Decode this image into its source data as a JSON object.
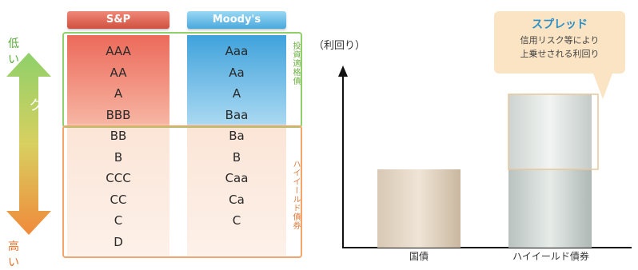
{
  "ratings": {
    "sp": {
      "header": "S&P",
      "items": [
        "AAA",
        "AA",
        "A",
        "BBB",
        "BB",
        "B",
        "CCC",
        "CC",
        "C",
        "D"
      ]
    },
    "moodys": {
      "header": "Moody's",
      "items": [
        "Aaa",
        "Aa",
        "A",
        "Baa",
        "Ba",
        "B",
        "Caa",
        "Ca",
        "C"
      ]
    },
    "investment_grade_label": "投資適格債",
    "high_yield_label": "ハイイールド債券"
  },
  "risk_arrow": {
    "low": "低い",
    "high": "高い",
    "label": "信用リスク"
  },
  "chart": {
    "y_label": "（利回り）",
    "x_labels": [
      "国債",
      "ハイイールド債券"
    ],
    "callout": {
      "title": "スプレッド",
      "line1": "信用リスク等により",
      "line2": "上乗せされる利回り"
    }
  },
  "colors": {
    "sp_header": "#d05040",
    "moodys_header": "#4aa8dc",
    "investment_box": "#8fd06a",
    "high_yield_box": "#f4a46a",
    "arrow_top": "#8fd06a",
    "arrow_bottom": "#f08a3a",
    "callout_title": "#2a8fc8"
  }
}
